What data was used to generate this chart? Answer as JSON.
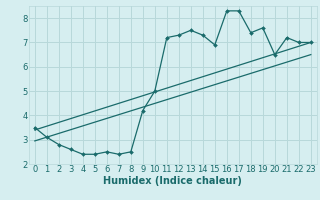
{
  "xlabel": "Humidex (Indice chaleur)",
  "bg_color": "#d6eef0",
  "grid_color": "#b8d8da",
  "line_color": "#1a6b6b",
  "x_data": [
    0,
    1,
    2,
    3,
    4,
    5,
    6,
    7,
    8,
    9,
    10,
    11,
    12,
    13,
    14,
    15,
    16,
    17,
    18,
    19,
    20,
    21,
    22,
    23
  ],
  "y_main": [
    3.5,
    3.1,
    2.8,
    2.6,
    2.4,
    2.4,
    2.5,
    2.4,
    2.5,
    4.2,
    5.0,
    7.2,
    7.3,
    7.5,
    7.3,
    6.9,
    8.3,
    8.3,
    7.4,
    7.6,
    6.5,
    7.2,
    7.0,
    7.0
  ],
  "y_trend1_start": 3.4,
  "y_trend1_end": 7.0,
  "y_trend2_start": 2.95,
  "y_trend2_end": 6.5,
  "xlim": [
    -0.5,
    23.5
  ],
  "ylim": [
    2.0,
    8.5
  ],
  "yticks": [
    2,
    3,
    4,
    5,
    6,
    7,
    8
  ],
  "xticks": [
    0,
    1,
    2,
    3,
    4,
    5,
    6,
    7,
    8,
    9,
    10,
    11,
    12,
    13,
    14,
    15,
    16,
    17,
    18,
    19,
    20,
    21,
    22,
    23
  ],
  "tick_fontsize": 6,
  "xlabel_fontsize": 7
}
